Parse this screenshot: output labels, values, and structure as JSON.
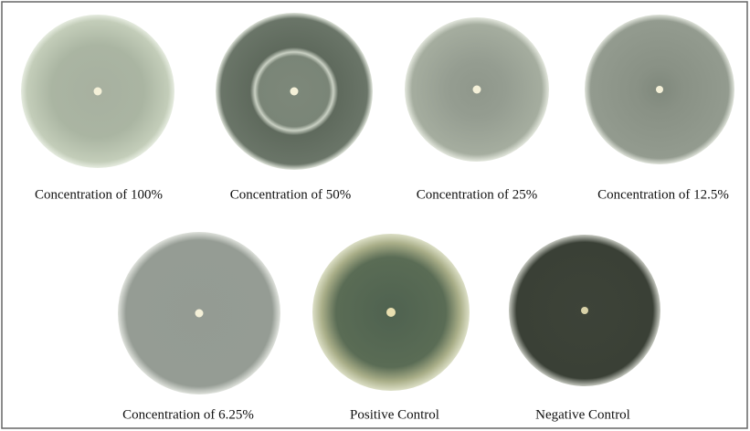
{
  "figure": {
    "panels": [
      {
        "label": "Concentration of 100%"
      },
      {
        "label": "Concentration of 50%"
      },
      {
        "label": "Concentration of 25%"
      },
      {
        "label": "Concentration of 12.5%"
      },
      {
        "label": "Concentration of 6.25%"
      },
      {
        "label": "Positive Control"
      },
      {
        "label": "Negative Control"
      }
    ]
  }
}
